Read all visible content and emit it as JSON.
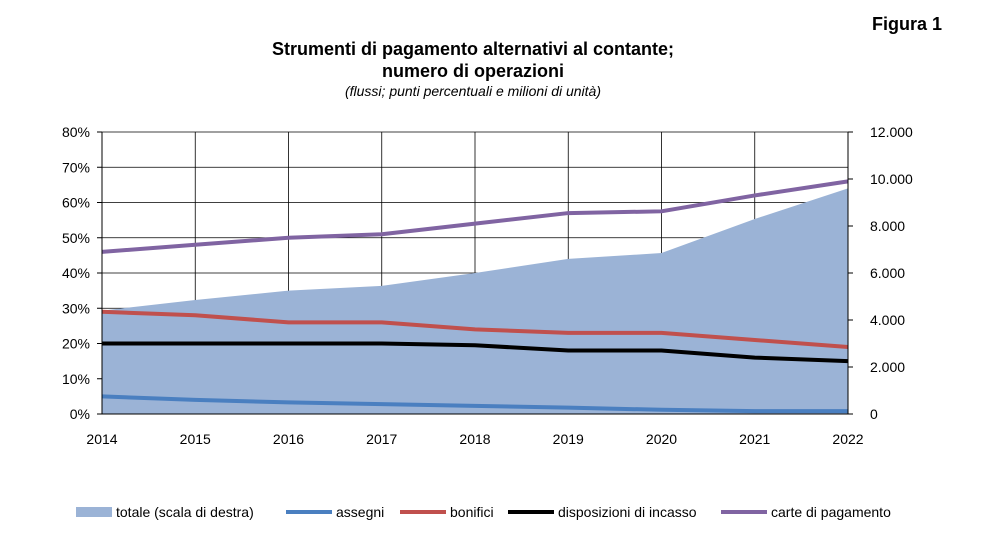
{
  "figure_label": "Figura 1",
  "chart_data": {
    "type": "line",
    "title_line1": "Strumenti di pagamento alternativi al contante;",
    "title_line2": "numero di operazioni",
    "subtitle": "(flussi; punti percentuali e milioni di unità)",
    "x": [
      "2014",
      "2015",
      "2016",
      "2017",
      "2018",
      "2019",
      "2020",
      "2021",
      "2022"
    ],
    "y_left": {
      "ticks": [
        "0%",
        "10%",
        "20%",
        "30%",
        "40%",
        "50%",
        "60%",
        "70%",
        "80%"
      ],
      "range": [
        0,
        80
      ]
    },
    "y_right": {
      "ticks": [
        "0",
        "2.000",
        "4.000",
        "6.000",
        "8.000",
        "10.000",
        "12.000"
      ],
      "range": [
        0,
        12000
      ]
    },
    "grid": true,
    "legend_position": "bottom",
    "area": {
      "name": "totale (scala di destra)",
      "color": "#9bb3d6",
      "axis": "right",
      "values": [
        4400,
        4850,
        5250,
        5450,
        6000,
        6600,
        6850,
        8300,
        9600
      ]
    },
    "series": [
      {
        "name": "assegni",
        "color": "#4a7fc0",
        "values": [
          5,
          4,
          3.3,
          2.8,
          2.3,
          1.8,
          1.2,
          0.8,
          0.8
        ]
      },
      {
        "name": "bonifici",
        "color": "#c0504d",
        "values": [
          29,
          28,
          26,
          26,
          24,
          23,
          23,
          21,
          19
        ]
      },
      {
        "name": "disposizioni di incasso",
        "color": "#000000",
        "values": [
          20,
          20,
          20,
          20,
          19.5,
          18,
          18,
          16,
          15
        ]
      },
      {
        "name": "carte di pagamento",
        "color": "#8064a2",
        "values": [
          46,
          48,
          50,
          51,
          54,
          57,
          57.5,
          62,
          66
        ]
      }
    ]
  }
}
